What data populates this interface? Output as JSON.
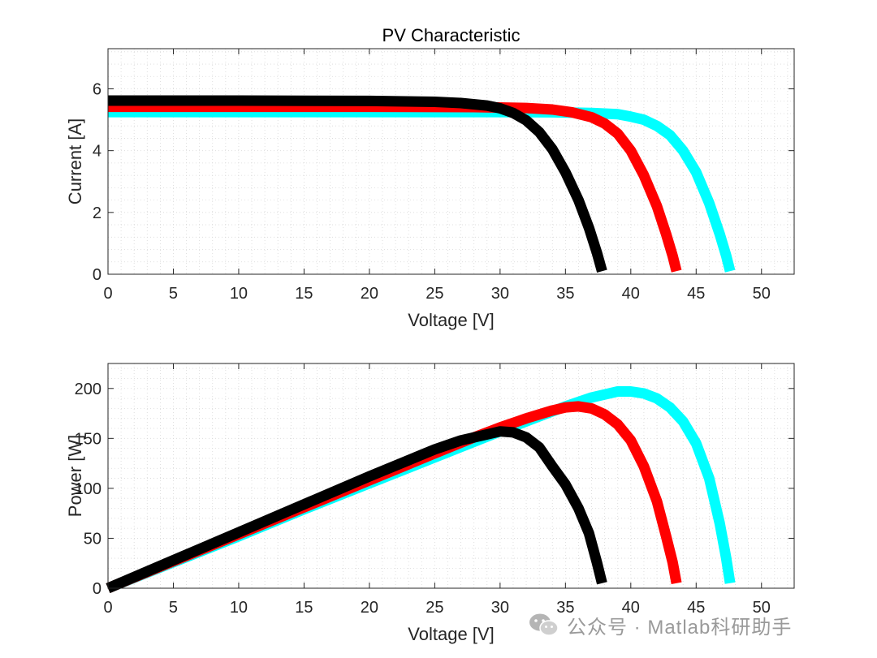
{
  "chart_data": [
    {
      "type": "line",
      "title": "PV Characteristic",
      "xlabel": "Voltage [V]",
      "ylabel": "Current [A]",
      "xlim": [
        0,
        52.5
      ],
      "ylim": [
        0,
        7.3
      ],
      "xticks": [
        0,
        5,
        10,
        15,
        20,
        25,
        30,
        35,
        40,
        45,
        50
      ],
      "yticks": [
        0,
        2,
        4,
        6
      ],
      "grid": "minor dotted",
      "series": [
        {
          "name": "cyan",
          "color": "#00ffff",
          "points": [
            [
              0,
              5.25
            ],
            [
              10,
              5.25
            ],
            [
              20,
              5.25
            ],
            [
              30,
              5.25
            ],
            [
              34,
              5.24
            ],
            [
              37,
              5.22
            ],
            [
              39,
              5.18
            ],
            [
              40,
              5.1
            ],
            [
              41,
              5.0
            ],
            [
              42,
              4.8
            ],
            [
              43,
              4.5
            ],
            [
              44,
              4.0
            ],
            [
              45,
              3.3
            ],
            [
              46,
              2.3
            ],
            [
              46.8,
              1.3
            ],
            [
              47.3,
              0.6
            ],
            [
              47.6,
              0.1
            ]
          ]
        },
        {
          "name": "red",
          "color": "#ff0000",
          "points": [
            [
              0,
              5.42
            ],
            [
              10,
              5.42
            ],
            [
              20,
              5.42
            ],
            [
              28,
              5.41
            ],
            [
              32,
              5.38
            ],
            [
              34,
              5.33
            ],
            [
              35.5,
              5.24
            ],
            [
              37,
              5.08
            ],
            [
              38,
              4.88
            ],
            [
              39,
              4.55
            ],
            [
              40,
              4.0
            ],
            [
              41,
              3.2
            ],
            [
              42,
              2.2
            ],
            [
              42.7,
              1.3
            ],
            [
              43.2,
              0.6
            ],
            [
              43.5,
              0.1
            ]
          ]
        },
        {
          "name": "black",
          "color": "#000000",
          "points": [
            [
              0,
              5.62
            ],
            [
              10,
              5.62
            ],
            [
              20,
              5.61
            ],
            [
              25,
              5.58
            ],
            [
              27,
              5.54
            ],
            [
              29,
              5.46
            ],
            [
              30,
              5.37
            ],
            [
              31,
              5.22
            ],
            [
              32,
              4.98
            ],
            [
              33,
              4.6
            ],
            [
              34,
              4.05
            ],
            [
              35,
              3.3
            ],
            [
              36,
              2.4
            ],
            [
              36.8,
              1.5
            ],
            [
              37.4,
              0.7
            ],
            [
              37.8,
              0.1
            ]
          ]
        }
      ]
    },
    {
      "type": "line",
      "title": "",
      "xlabel": "Voltage [V]",
      "ylabel": "Power [W]",
      "xlim": [
        0,
        52.5
      ],
      "ylim": [
        0,
        225
      ],
      "xticks": [
        0,
        5,
        10,
        15,
        20,
        25,
        30,
        35,
        40,
        45,
        50
      ],
      "yticks": [
        0,
        50,
        100,
        150,
        200
      ],
      "grid": "minor dotted",
      "series": [
        {
          "name": "cyan",
          "color": "#00ffff",
          "points": [
            [
              0,
              0
            ],
            [
              5,
              26
            ],
            [
              10,
              52
            ],
            [
              15,
              79
            ],
            [
              20,
              105
            ],
            [
              25,
              131
            ],
            [
              30,
              157
            ],
            [
              33,
              172
            ],
            [
              35,
              182
            ],
            [
              37,
              191
            ],
            [
              39,
              197
            ],
            [
              40,
              197
            ],
            [
              41,
              195
            ],
            [
              42,
              190
            ],
            [
              43,
              181
            ],
            [
              44,
              167
            ],
            [
              45,
              145
            ],
            [
              46,
              110
            ],
            [
              46.8,
              65
            ],
            [
              47.3,
              30
            ],
            [
              47.6,
              5
            ]
          ]
        },
        {
          "name": "red",
          "color": "#ff0000",
          "points": [
            [
              0,
              0
            ],
            [
              5,
              27
            ],
            [
              10,
              54
            ],
            [
              15,
              81
            ],
            [
              20,
              108
            ],
            [
              25,
              135
            ],
            [
              28,
              151
            ],
            [
              30,
              161
            ],
            [
              32,
              170
            ],
            [
              34,
              178
            ],
            [
              35,
              181
            ],
            [
              36,
              182
            ],
            [
              37,
              180
            ],
            [
              38,
              174
            ],
            [
              39,
              164
            ],
            [
              40,
              148
            ],
            [
              41,
              122
            ],
            [
              42,
              87
            ],
            [
              42.7,
              52
            ],
            [
              43.2,
              26
            ],
            [
              43.5,
              5
            ]
          ]
        },
        {
          "name": "black",
          "color": "#000000",
          "points": [
            [
              0,
              0
            ],
            [
              5,
              28
            ],
            [
              10,
              56
            ],
            [
              15,
              84
            ],
            [
              20,
              112
            ],
            [
              25,
              139
            ],
            [
              27,
              148
            ],
            [
              29,
              154
            ],
            [
              30,
              157
            ],
            [
              31,
              156
            ],
            [
              32,
              151
            ],
            [
              33,
              141
            ],
            [
              34,
              122
            ],
            [
              35,
              104
            ],
            [
              36,
              80
            ],
            [
              36.8,
              55
            ],
            [
              37.4,
              26
            ],
            [
              37.8,
              5
            ]
          ]
        }
      ]
    }
  ],
  "watermark": {
    "text": "公众号 · Matlab科研助手",
    "icon": "wechat-icon"
  }
}
